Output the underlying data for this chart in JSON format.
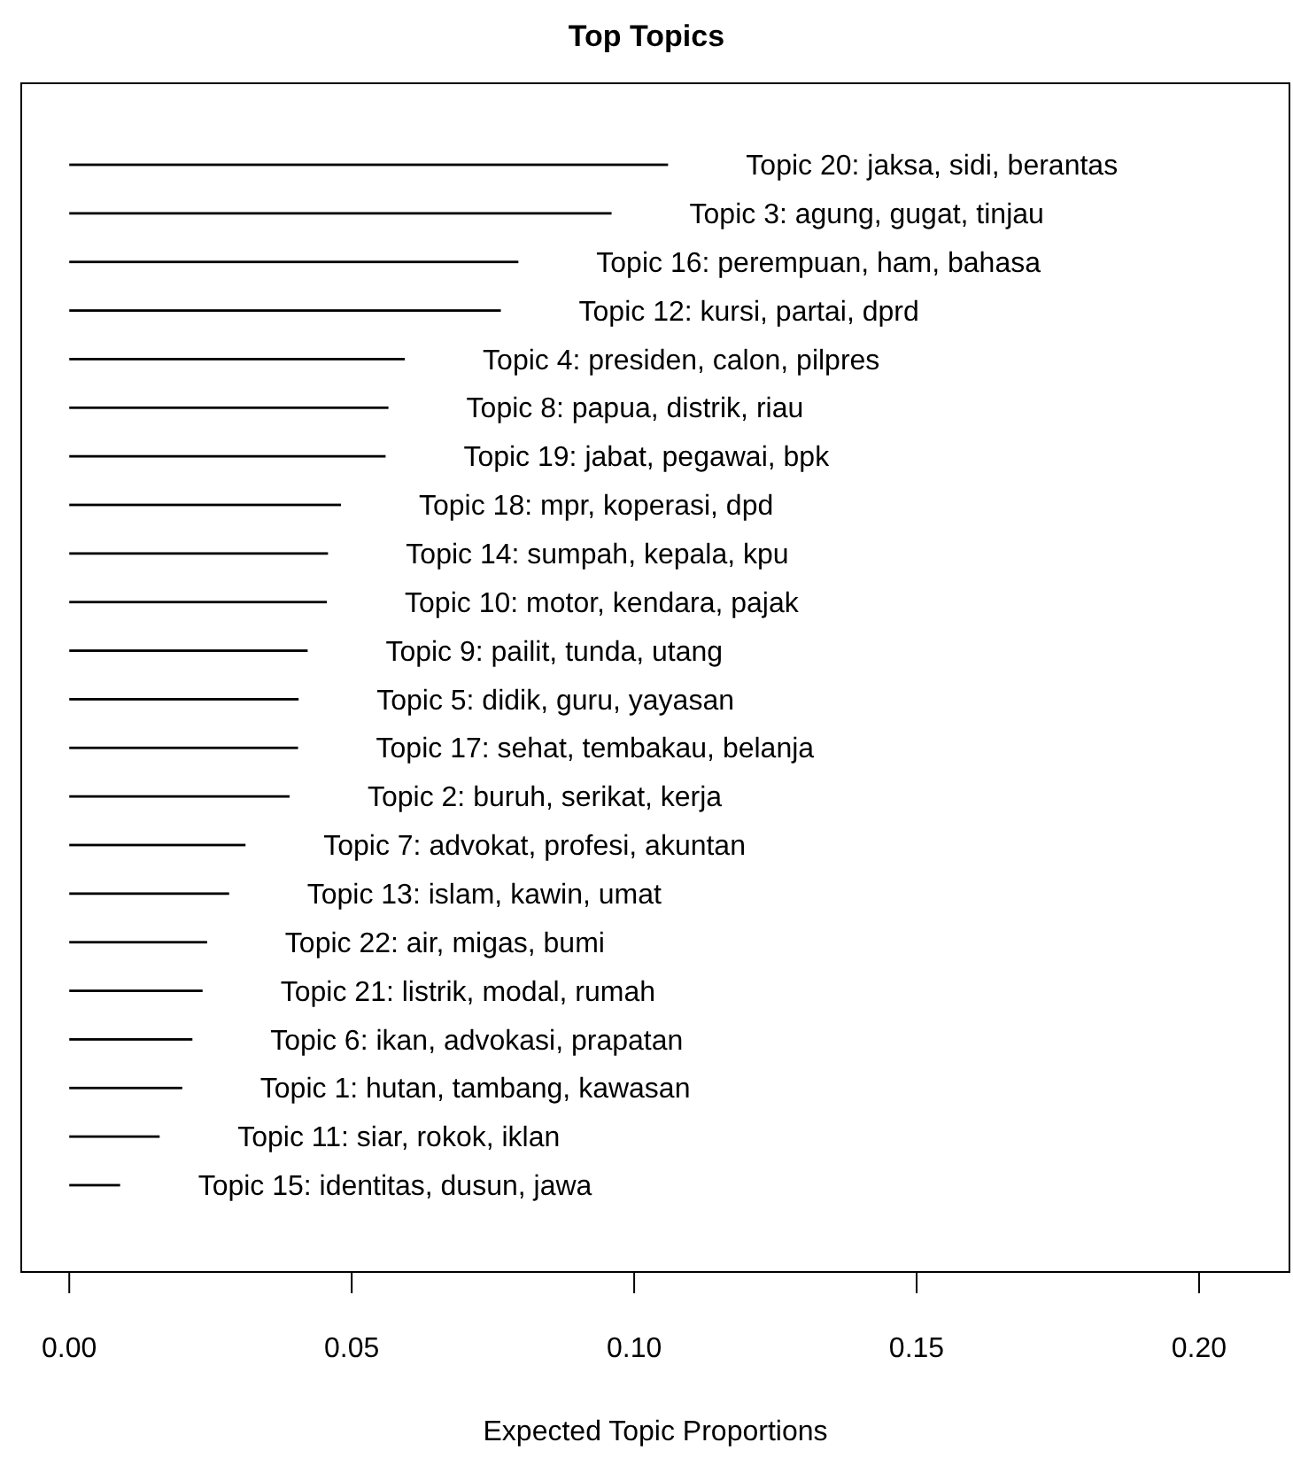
{
  "chart_data": {
    "type": "bar",
    "orientation": "horizontal",
    "title": "Top Topics",
    "xlabel": "Expected Topic Proportions",
    "categories": [
      "Topic 20: jaksa, sidi, berantas",
      "Topic 3: agung, gugat, tinjau",
      "Topic 16: perempuan, ham, bahasa",
      "Topic 12: kursi, partai, dprd",
      "Topic 4: presiden, calon, pilpres",
      "Topic 8: papua, distrik, riau",
      "Topic 19: jabat, pegawai, bpk",
      "Topic 18: mpr, koperasi, dpd",
      "Topic 14: sumpah, kepala, kpu",
      "Topic 10: motor, kendara, pajak",
      "Topic 9: pailit, tunda, utang",
      "Topic 5: didik, guru, yayasan",
      "Topic 17: sehat, tembakau, belanja",
      "Topic 2: buruh, serikat, kerja",
      "Topic 7: advokat, profesi, akuntan",
      "Topic 13: islam, kawin, umat",
      "Topic 22: air, migas, bumi",
      "Topic 21: listrik, modal, rumah",
      "Topic 6: ikan, advokasi, prapatan",
      "Topic 1: hutan, tambang, kawasan",
      "Topic 11: siar, rokok, iklan",
      "Topic 15: identitas, dusun, jawa"
    ],
    "values": [
      0.106,
      0.096,
      0.0795,
      0.0764,
      0.0594,
      0.0565,
      0.056,
      0.0481,
      0.0458,
      0.0456,
      0.0422,
      0.0406,
      0.0405,
      0.039,
      0.0312,
      0.0283,
      0.0244,
      0.0236,
      0.0218,
      0.02,
      0.016,
      0.009
    ],
    "color": "#000000",
    "xlim": [
      -0.0085,
      0.216
    ],
    "xticks": [
      {
        "value": 0,
        "label": "0.00"
      },
      {
        "value": 0.05,
        "label": "0.05"
      },
      {
        "value": 0.1,
        "label": "0.10"
      },
      {
        "value": 0.15,
        "label": "0.15"
      },
      {
        "value": 0.2,
        "label": "0.20"
      }
    ]
  }
}
